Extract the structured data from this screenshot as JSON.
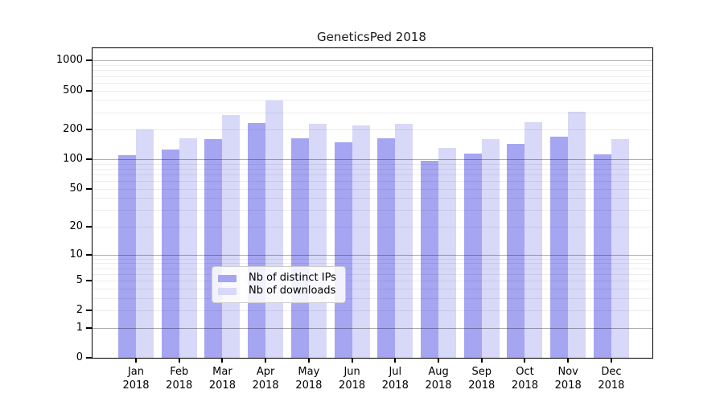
{
  "chart_data": {
    "type": "bar",
    "title": "GeneticsPed 2018",
    "categories": [
      "Jan 2018",
      "Feb 2018",
      "Mar 2018",
      "Apr 2018",
      "May 2018",
      "Jun 2018",
      "Jul 2018",
      "Aug 2018",
      "Sep 2018",
      "Oct 2018",
      "Nov 2018",
      "Dec 2018"
    ],
    "months": [
      "Jan",
      "Feb",
      "Mar",
      "Apr",
      "May",
      "Jun",
      "Jul",
      "Aug",
      "Sep",
      "Oct",
      "Nov",
      "Dec"
    ],
    "year": "2018",
    "series": [
      {
        "name": "Nb of distinct IPs",
        "color": "#a5a5f2",
        "values": [
          110,
          126,
          162,
          232,
          165,
          149,
          164,
          97,
          115,
          144,
          171,
          113
        ]
      },
      {
        "name": "Nb of downloads",
        "color": "#d8d8f8",
        "values": [
          202,
          163,
          281,
          397,
          231,
          220,
          229,
          130,
          161,
          238,
          303,
          162
        ]
      }
    ],
    "y_axis": {
      "scale": "log1p",
      "tick_labels": [
        1000,
        500,
        200,
        100,
        50,
        20,
        10,
        5,
        2,
        1,
        0
      ],
      "major_gridlines": [
        1,
        10,
        100,
        1000
      ],
      "minor_gridlines": [
        2,
        3,
        4,
        5,
        6,
        7,
        8,
        9,
        20,
        30,
        40,
        50,
        60,
        70,
        80,
        90,
        200,
        300,
        400,
        500,
        600,
        700,
        800,
        900
      ],
      "range": [
        0,
        1320
      ]
    },
    "x_axis": {
      "label": "",
      "tick_format": "month over year, two lines"
    },
    "legend": {
      "position": "lower-center",
      "entries": [
        "Nb of distinct IPs",
        "Nb of downloads"
      ]
    },
    "grid": true,
    "colors": {
      "distinct_ips": "#a5a5f2",
      "downloads": "#d8d8f8",
      "major_grid": "#b0b0b0",
      "minor_grid": "#ededed"
    }
  }
}
